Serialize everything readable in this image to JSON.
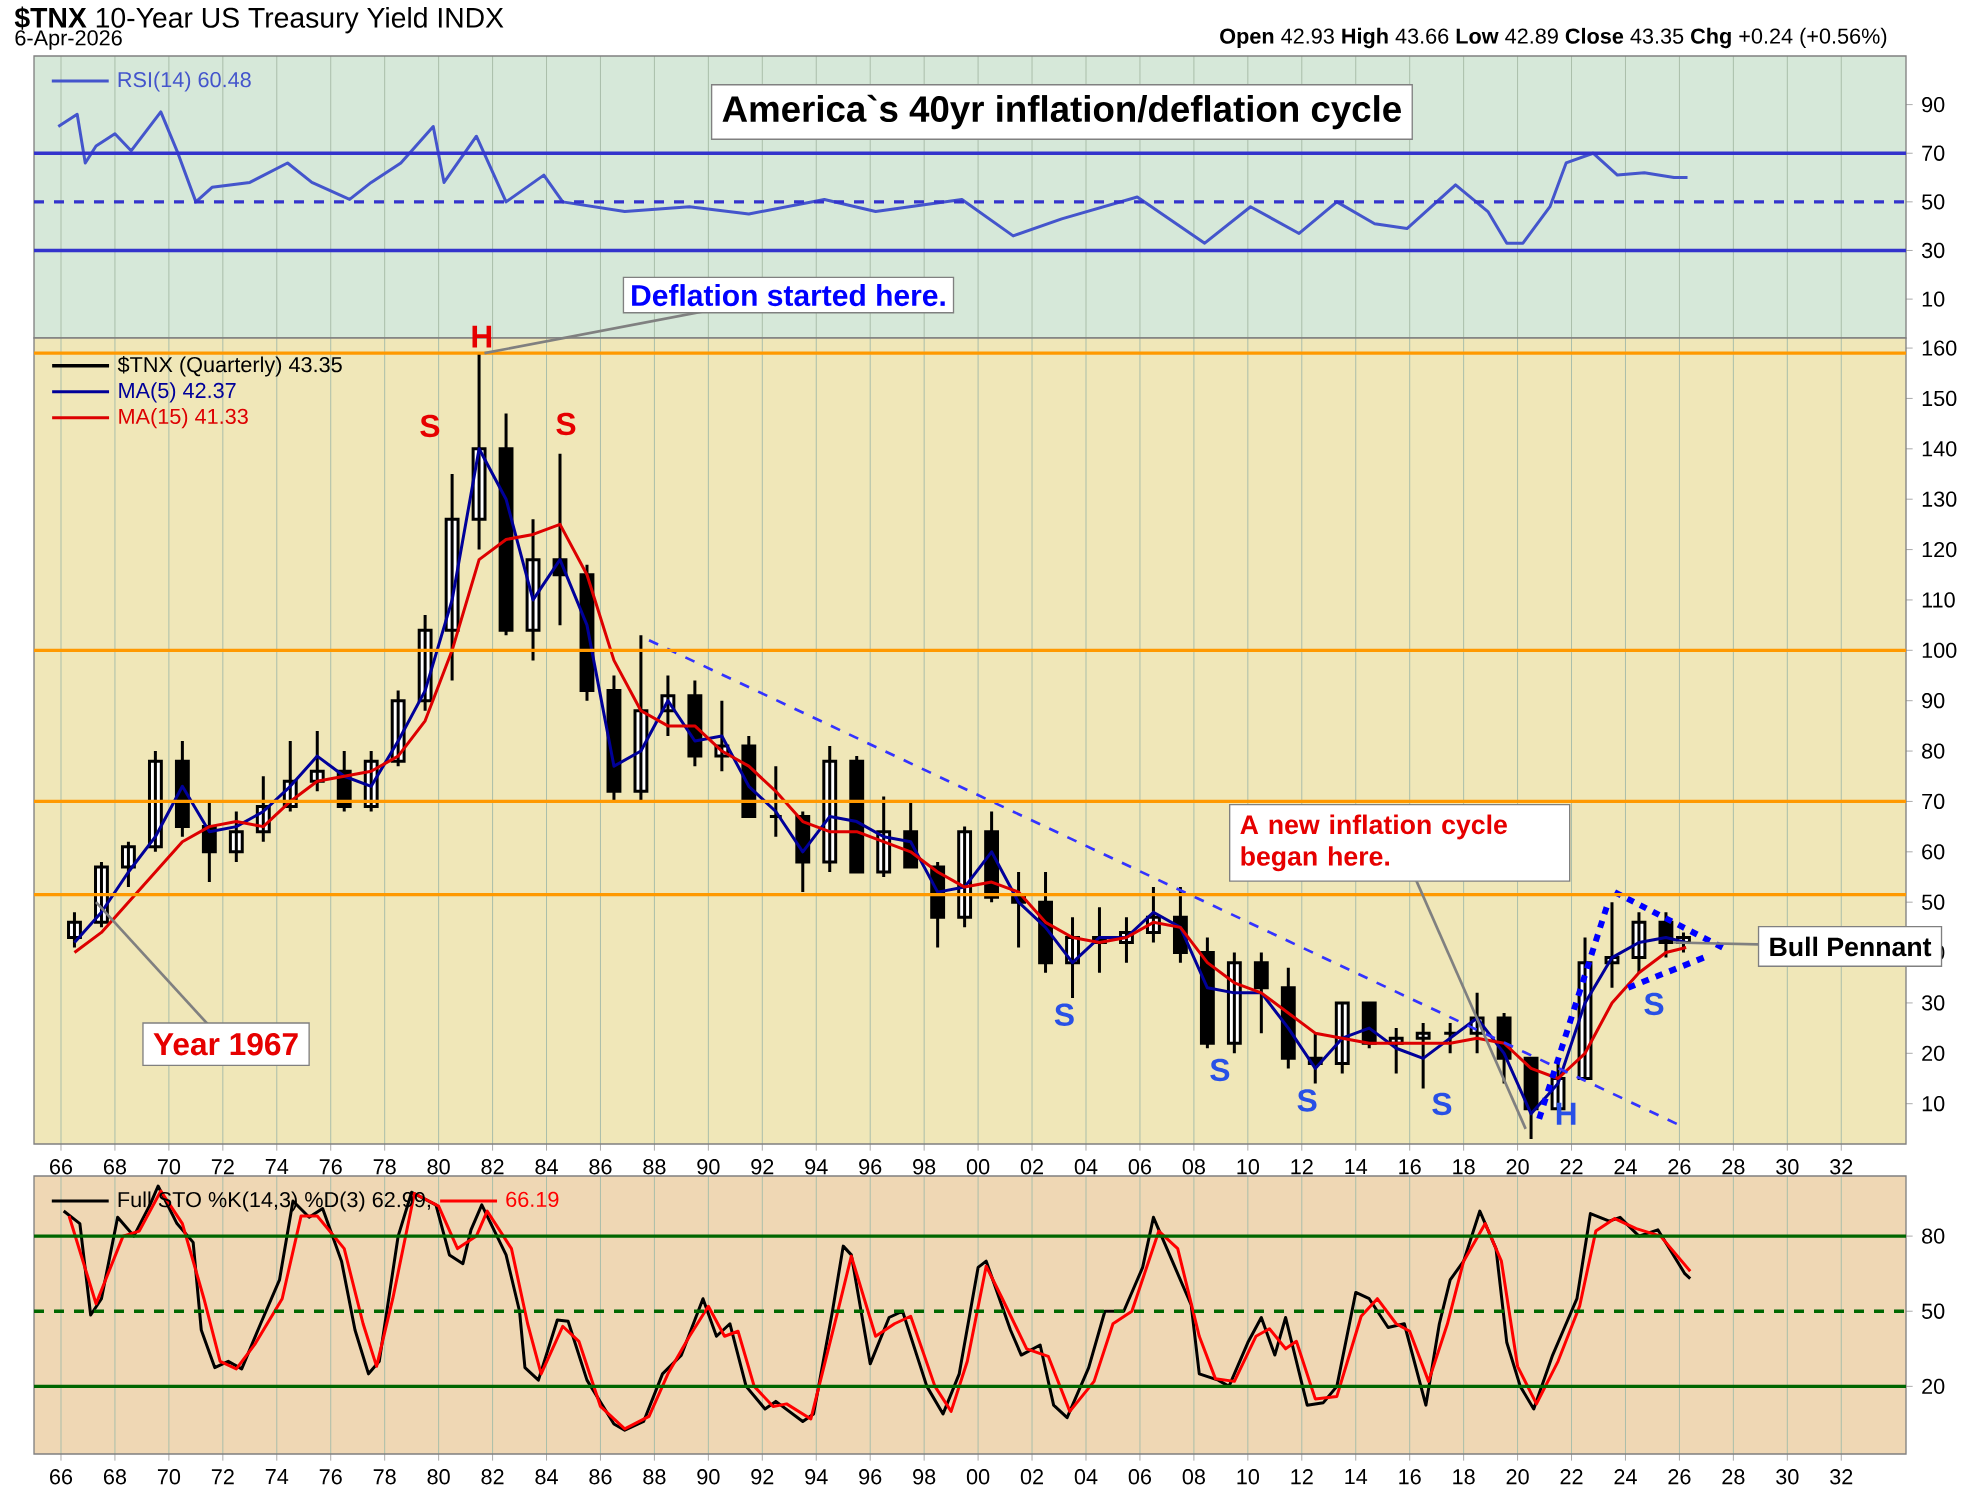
{
  "chart_data": [
    {
      "type": "line",
      "title": "**$TNX** 10-Year US Treasury Yield INDX",
      "subtitle": "6-Apr-2026",
      "annotations": [
        "America`s 40yr inflation/deflation cycle",
        "**Open** 42.93 **High** 43.66 **Low** 42.89 **Close** 43.35 **Chg** +0.24 (+0.56%)"
      ],
      "xlim": [
        1965,
        2034.4
      ],
      "ylim": [
        -6,
        110
      ],
      "yticks": [
        10,
        30,
        50,
        70,
        90
      ],
      "tick_labels": "y",
      "grid": "x",
      "legend": "top left",
      "xticks": [
        {
          "value": 1966,
          "label": null
        },
        {
          "value": 1968,
          "label": null
        },
        {
          "value": 1970,
          "label": null
        },
        {
          "value": 1972,
          "label": null
        },
        {
          "value": 1974,
          "label": null
        },
        {
          "value": 1976,
          "label": null
        },
        {
          "value": 1978,
          "label": null
        },
        {
          "value": 1980,
          "label": null
        },
        {
          "value": 1982,
          "label": null
        },
        {
          "value": 1984,
          "label": null
        },
        {
          "value": 1986,
          "label": null
        },
        {
          "value": 1988,
          "label": null
        },
        {
          "value": 1990,
          "label": null
        },
        {
          "value": 1992,
          "label": null
        },
        {
          "value": 1994,
          "label": null
        },
        {
          "value": 1996,
          "label": null
        },
        {
          "value": 1998,
          "label": null
        },
        {
          "value": 2000,
          "label": null
        },
        {
          "value": 2002,
          "label": null
        },
        {
          "value": 2004,
          "label": null
        },
        {
          "value": 2006,
          "label": null
        },
        {
          "value": 2008,
          "label": null
        },
        {
          "value": 2010,
          "label": null
        },
        {
          "value": 2012,
          "label": null
        },
        {
          "value": 2014,
          "label": null
        },
        {
          "value": 2016,
          "label": null
        },
        {
          "value": 2018,
          "label": null
        },
        {
          "value": 2020,
          "label": null
        },
        {
          "value": 2022,
          "label": null
        },
        {
          "value": 2024,
          "label": null
        },
        {
          "value": 2026,
          "label": null
        },
        {
          "value": 2028,
          "label": null
        },
        {
          "value": 2030,
          "label": null
        },
        {
          "value": 2032,
          "label": null
        }
      ],
      "ref_lines": [
        {
          "axis": "y",
          "value": 70,
          "color": "#3333cc",
          "line_style": "solid"
        },
        {
          "axis": "y",
          "value": 50,
          "color": "#3333cc",
          "line_style": "dashed"
        },
        {
          "axis": "y",
          "value": 30,
          "color": "#3333cc",
          "line_style": "solid"
        }
      ],
      "series": [
        {
          "name": "RSI(14) 60.48",
          "color": "#4455cc",
          "x": [
            1965.9,
            1966.6,
            1966.9,
            1967.3,
            1968,
            1968.6,
            1969.7,
            1970.3,
            1971,
            1971.6,
            1973,
            1974.4,
            1975.3,
            1976.7,
            1977.5,
            1978.6,
            1979.8,
            1980.2,
            1981.4,
            1982.5,
            1983.9,
            1984.6,
            1986.9,
            1989.3,
            1991.5,
            1994.3,
            1996.2,
            1999.4,
            2001.3,
            2003.1,
            2005.9,
            2008.4,
            2010.1,
            2011.9,
            2013.3,
            2014.7,
            2015.9,
            2017.7,
            2018.9,
            2019.6,
            2020.2,
            2021.2,
            2021.8,
            2022.8,
            2023.7,
            2024.7,
            2025.8,
            2026.3
          ],
          "values": [
            81,
            86,
            66,
            73,
            78,
            71,
            87,
            71,
            50,
            56,
            58,
            66,
            58,
            51,
            58,
            66,
            81,
            58,
            77,
            50,
            61,
            50,
            46,
            48,
            45,
            51,
            46,
            51,
            36,
            43,
            52,
            33,
            48,
            37,
            50,
            41,
            39,
            57,
            46,
            33,
            33,
            48,
            66,
            70,
            61,
            62,
            60,
            60
          ]
        }
      ]
    },
    {
      "type": "candlestick",
      "xlim": [
        1965,
        2034.4
      ],
      "ylim": [
        2,
        162
      ],
      "yticks": [
        10,
        20,
        30,
        40,
        50,
        60,
        70,
        80,
        90,
        100,
        110,
        120,
        130,
        140,
        150,
        160
      ],
      "grid": "x",
      "legend": "top left",
      "xticks": [
        {
          "value": 1966,
          "label": "66"
        },
        {
          "value": 1968,
          "label": "68"
        },
        {
          "value": 1970,
          "label": "70"
        },
        {
          "value": 1972,
          "label": "72"
        },
        {
          "value": 1974,
          "label": "74"
        },
        {
          "value": 1976,
          "label": "76"
        },
        {
          "value": 1978,
          "label": "78"
        },
        {
          "value": 1980,
          "label": "80"
        },
        {
          "value": 1982,
          "label": "82"
        },
        {
          "value": 1984,
          "label": "84"
        },
        {
          "value": 1986,
          "label": "86"
        },
        {
          "value": 1988,
          "label": "88"
        },
        {
          "value": 1990,
          "label": "90"
        },
        {
          "value": 1992,
          "label": "92"
        },
        {
          "value": 1994,
          "label": "94"
        },
        {
          "value": 1996,
          "label": "96"
        },
        {
          "value": 1998,
          "label": "98"
        },
        {
          "value": 2000,
          "label": "00"
        },
        {
          "value": 2002,
          "label": "02"
        },
        {
          "value": 2004,
          "label": "04"
        },
        {
          "value": 2006,
          "label": "06"
        },
        {
          "value": 2008,
          "label": "08"
        },
        {
          "value": 2010,
          "label": "10"
        },
        {
          "value": 2012,
          "label": "12"
        },
        {
          "value": 2014,
          "label": "14"
        },
        {
          "value": 2016,
          "label": "16"
        },
        {
          "value": 2018,
          "label": "18"
        },
        {
          "value": 2020,
          "label": "20"
        },
        {
          "value": 2022,
          "label": "22"
        },
        {
          "value": 2024,
          "label": "24"
        },
        {
          "value": 2026,
          "label": "26"
        },
        {
          "value": 2028,
          "label": "28"
        },
        {
          "value": 2030,
          "label": "30"
        },
        {
          "value": 2032,
          "label": "32"
        }
      ],
      "ref_lines": [
        {
          "axis": "y",
          "value": 159,
          "color": "#ff9900",
          "line_style": "solid"
        },
        {
          "axis": "y",
          "value": 100,
          "color": "#ff9900",
          "line_style": "solid"
        },
        {
          "axis": "y",
          "value": 70,
          "color": "#ff9900",
          "line_style": "solid"
        },
        {
          "axis": "y",
          "value": 51.5,
          "color": "#ff9900",
          "line_style": "solid"
        }
      ],
      "annotations": [
        {
          "text": "H",
          "x": 1981.6,
          "y": 159
        },
        {
          "text": "Deflation started here.",
          "x": 1981.7,
          "y": 159
        },
        {
          "text": "Year 1967",
          "x": 1967.3,
          "y": 50
        },
        {
          "text": "S",
          "x": 2003.2,
          "y": 31
        },
        {
          "text": "S",
          "x": 2012.2,
          "y": 14
        },
        {
          "text": "A new inflation cycle began here.",
          "x": 2020.3,
          "y": 5
        },
        {
          "text": "H",
          "x": 2021.8,
          "y": 8
        },
        {
          "text": "Bull Pennant",
          "x": 2025.8,
          "y": 42
        },
        "S",
        "S",
        "S",
        "S",
        "S"
      ],
      "series": [
        {
          "name": "$TNX (Quarterly) 43.35",
          "type": "candlestick",
          "color": "#000000",
          "x": [
            1966.5,
            1967.5,
            1968.5,
            1969.5,
            1970.5,
            1971.5,
            1972.5,
            1973.5,
            1974.5,
            1975.5,
            1976.5,
            1977.5,
            1978.5,
            1979.5,
            1980.5,
            1981.5,
            1982.5,
            1983.5,
            1984.5,
            1985.5,
            1986.5,
            1987.5,
            1988.5,
            1989.5,
            1990.5,
            1991.5,
            1992.5,
            1993.5,
            1994.5,
            1995.5,
            1996.5,
            1997.5,
            1998.5,
            1999.5,
            2000.5,
            2001.5,
            2002.5,
            2003.5,
            2004.5,
            2005.5,
            2006.5,
            2007.5,
            2008.5,
            2009.5,
            2010.5,
            2011.5,
            2012.5,
            2013.5,
            2014.5,
            2015.5,
            2016.5,
            2017.5,
            2018.5,
            2019.5,
            2020.5,
            2021.5,
            2022.5,
            2023.5,
            2024.5,
            2025.5,
            2026.15
          ],
          "ohlc": [
            [
              43,
              48,
              41,
              46
            ],
            [
              46,
              58,
              45,
              57
            ],
            [
              57,
              62,
              53,
              61
            ],
            [
              61,
              80,
              60,
              78
            ],
            [
              78,
              82,
              63,
              65
            ],
            [
              65,
              70,
              54,
              60
            ],
            [
              60,
              68,
              58,
              64
            ],
            [
              64,
              75,
              62,
              69
            ],
            [
              69,
              82,
              68,
              74
            ],
            [
              74,
              84,
              72,
              76
            ],
            [
              76,
              80,
              68,
              69
            ],
            [
              69,
              80,
              68,
              78
            ],
            [
              78,
              92,
              77,
              90
            ],
            [
              90,
              107,
              88,
              104
            ],
            [
              104,
              135,
              94,
              126
            ],
            [
              126,
              159,
              120,
              140
            ],
            [
              140,
              147,
              103,
              104
            ],
            [
              104,
              126,
              98,
              118
            ],
            [
              118,
              139,
              105,
              115
            ],
            [
              115,
              117,
              90,
              92
            ],
            [
              92,
              95,
              70,
              72
            ],
            [
              72,
              103,
              70,
              88
            ],
            [
              88,
              95,
              83,
              91
            ],
            [
              91,
              94,
              77,
              79
            ],
            [
              79,
              90,
              76,
              81
            ],
            [
              81,
              83,
              67,
              67
            ],
            [
              67,
              77,
              63,
              67
            ],
            [
              67,
              68,
              52,
              58
            ],
            [
              58,
              81,
              56,
              78
            ],
            [
              78,
              79,
              56,
              56
            ],
            [
              56,
              71,
              55,
              64
            ],
            [
              64,
              70,
              57,
              57
            ],
            [
              57,
              58,
              41,
              47
            ],
            [
              47,
              65,
              45,
              64
            ],
            [
              64,
              68,
              50,
              51
            ],
            [
              51,
              56,
              41,
              50
            ],
            [
              50,
              56,
              36,
              38
            ],
            [
              38,
              47,
              31,
              43
            ],
            [
              43,
              49,
              36,
              42
            ],
            [
              42,
              47,
              38,
              44
            ],
            [
              44,
              53,
              42,
              47
            ],
            [
              47,
              53,
              38,
              40
            ],
            [
              40,
              43,
              21,
              22
            ],
            [
              22,
              40,
              20,
              38
            ],
            [
              38,
              40,
              24,
              33
            ],
            [
              33,
              37,
              17,
              19
            ],
            [
              19,
              24,
              14,
              18
            ],
            [
              18,
              30,
              16,
              30
            ],
            [
              30,
              30,
              21,
              22
            ],
            [
              22,
              25,
              16,
              23
            ],
            [
              23,
              26,
              13,
              24
            ],
            [
              24,
              26,
              20,
              24
            ],
            [
              24,
              32,
              20,
              27
            ],
            [
              27,
              28,
              14,
              19
            ],
            [
              19,
              19,
              3,
              9
            ],
            [
              9,
              18,
              9,
              15
            ],
            [
              15,
              43,
              15,
              38
            ],
            [
              38,
              50,
              33,
              39
            ],
            [
              39,
              48,
              36,
              46
            ],
            [
              46,
              48,
              39,
              42
            ],
            [
              42,
              44,
              40,
              43
            ]
          ]
        },
        {
          "name": "MA(5) 42.37",
          "type": "line",
          "color": "#000099",
          "x": [
            1966.5,
            1967.5,
            1968.5,
            1969.5,
            1970.5,
            1971.5,
            1972.5,
            1973.5,
            1974.5,
            1975.5,
            1976.5,
            1977.5,
            1978.5,
            1979.5,
            1980.5,
            1981.5,
            1982.5,
            1983.5,
            1984.5,
            1985.5,
            1986.5,
            1987.5,
            1988.5,
            1989.5,
            1990.5,
            1991.5,
            1992.5,
            1993.5,
            1994.5,
            1995.5,
            1996.5,
            1997.5,
            1998.5,
            1999.5,
            2000.5,
            2001.5,
            2002.5,
            2003.5,
            2004.5,
            2005.5,
            2006.5,
            2007.5,
            2008.5,
            2009.5,
            2010.5,
            2011.5,
            2012.5,
            2013.5,
            2014.5,
            2015.5,
            2016.5,
            2017.5,
            2018.5,
            2019.5,
            2020.5,
            2021.5,
            2022.5,
            2023.5,
            2024.5,
            2025.5,
            2026.25
          ],
          "values": [
            42,
            48,
            56,
            63,
            73,
            64,
            65,
            68,
            73,
            79,
            75,
            73,
            82,
            92,
            110,
            140,
            130,
            110,
            118,
            105,
            77,
            80,
            90,
            82,
            83,
            73,
            68,
            60,
            67,
            66,
            63,
            62,
            52,
            53,
            60,
            50,
            45,
            38,
            43,
            43,
            48,
            45,
            33,
            32,
            32,
            25,
            17,
            23,
            25,
            21,
            19,
            23,
            27,
            20,
            8,
            14,
            30,
            39,
            42,
            43,
            42
          ]
        },
        {
          "name": "MA(15) 41.33",
          "type": "line",
          "color": "#dd0000",
          "x": [
            1966.5,
            1967.5,
            1968.5,
            1969.5,
            1970.5,
            1971.5,
            1972.5,
            1973.5,
            1974.5,
            1975.5,
            1976.5,
            1977.5,
            1978.5,
            1979.5,
            1980.5,
            1981.5,
            1982.5,
            1983.5,
            1984.5,
            1985.5,
            1986.5,
            1987.5,
            1988.5,
            1989.5,
            1990.5,
            1991.5,
            1992.5,
            1993.5,
            1994.5,
            1995.5,
            1996.5,
            1997.5,
            1998.5,
            1999.5,
            2000.5,
            2001.5,
            2002.5,
            2003.5,
            2004.5,
            2005.5,
            2006.5,
            2007.5,
            2008.5,
            2009.5,
            2010.5,
            2011.5,
            2012.5,
            2013.5,
            2014.5,
            2015.5,
            2016.5,
            2017.5,
            2018.5,
            2019.5,
            2020.5,
            2021.5,
            2022.5,
            2023.5,
            2024.5,
            2025.5,
            2026.25
          ],
          "values": [
            40,
            44,
            50,
            56,
            62,
            65,
            66,
            65,
            70,
            74,
            75,
            76,
            79,
            86,
            100,
            118,
            122,
            123,
            125,
            115,
            98,
            88,
            85,
            85,
            80,
            77,
            72,
            66,
            64,
            64,
            62,
            60,
            56,
            53,
            54,
            52,
            46,
            43,
            42,
            43,
            46,
            45,
            38,
            34,
            32,
            28,
            24,
            23,
            22,
            22,
            22,
            22,
            23,
            22,
            17,
            15,
            20,
            30,
            36,
            40,
            41
          ]
        },
        {
          "type": "line",
          "color": "#3333ff",
          "line_style": "dashed",
          "x": [
            1987.8,
            2025.9
          ],
          "values": [
            102,
            6
          ]
        },
        {
          "type": "line",
          "color": "#0000ff",
          "line_style": "dotted",
          "x": [
            2020.8,
            2023.3
          ],
          "values": [
            7,
            49
          ]
        },
        {
          "type": "line",
          "color": "#0000ff",
          "line_style": "dotted",
          "x": [
            2023.6,
            2027.6
          ],
          "values": [
            52,
            41
          ]
        },
        {
          "type": "line",
          "color": "#0000ff",
          "line_style": "dotted",
          "x": [
            2024.1,
            2026.9
          ],
          "values": [
            33,
            39
          ]
        }
      ]
    },
    {
      "type": "line",
      "xlim": [
        1965,
        2034.4
      ],
      "ylim": [
        -7,
        104
      ],
      "yticks": [
        20,
        50,
        80
      ],
      "grid": true,
      "legend": "top left",
      "xticks": [
        {
          "value": 1966,
          "label": "66"
        },
        {
          "value": 1968,
          "label": "68"
        },
        {
          "value": 1970,
          "label": "70"
        },
        {
          "value": 1972,
          "label": "72"
        },
        {
          "value": 1974,
          "label": "74"
        },
        {
          "value": 1976,
          "label": "76"
        },
        {
          "value": 1978,
          "label": "78"
        },
        {
          "value": 1980,
          "label": "80"
        },
        {
          "value": 1982,
          "label": "82"
        },
        {
          "value": 1984,
          "label": "84"
        },
        {
          "value": 1986,
          "label": "86"
        },
        {
          "value": 1988,
          "label": "88"
        },
        {
          "value": 1990,
          "label": "90"
        },
        {
          "value": 1992,
          "label": "92"
        },
        {
          "value": 1994,
          "label": "94"
        },
        {
          "value": 1996,
          "label": "96"
        },
        {
          "value": 1998,
          "label": "98"
        },
        {
          "value": 2000,
          "label": "00"
        },
        {
          "value": 2002,
          "label": "02"
        },
        {
          "value": 2004,
          "label": "04"
        },
        {
          "value": 2006,
          "label": "06"
        },
        {
          "value": 2008,
          "label": "08"
        },
        {
          "value": 2010,
          "label": "10"
        },
        {
          "value": 2012,
          "label": "12"
        },
        {
          "value": 2014,
          "label": "14"
        },
        {
          "value": 2016,
          "label": "16"
        },
        {
          "value": 2018,
          "label": "18"
        },
        {
          "value": 2020,
          "label": "20"
        },
        {
          "value": 2022,
          "label": "22"
        },
        {
          "value": 2024,
          "label": "24"
        },
        {
          "value": 2026,
          "label": "26"
        },
        {
          "value": 2028,
          "label": "28"
        },
        {
          "value": 2030,
          "label": "30"
        },
        {
          "value": 2032,
          "label": "32"
        }
      ],
      "ref_lines": [
        {
          "axis": "y",
          "value": 80,
          "color": "#006600",
          "line_style": "solid"
        },
        {
          "axis": "y",
          "value": 50,
          "color": "#006600",
          "line_style": "dashed"
        },
        {
          "axis": "y",
          "value": 20,
          "color": "#006600",
          "line_style": "solid"
        }
      ],
      "series": [
        {
          "name": "Full STO %K(14,3) %D(3) 62.99,",
          "color": "#000000",
          "x": [
            1966.1,
            1966.7,
            1967.1,
            1967.5,
            1968.1,
            1968.7,
            1969.3,
            1969.6,
            1970.3,
            1970.9,
            1971.2,
            1971.7,
            1972.2,
            1972.7,
            1973.4,
            1974.1,
            1974.6,
            1975.2,
            1975.7,
            1976.4,
            1976.9,
            1977.4,
            1977.8,
            1978.5,
            1979,
            1979.9,
            1980.4,
            1980.9,
            1981.2,
            1981.6,
            1982.5,
            1983,
            1983.2,
            1983.7,
            1984.4,
            1984.8,
            1985.5,
            1986.5,
            1986.9,
            1987.6,
            1988.3,
            1989,
            1989.8,
            1990.3,
            1990.8,
            1991.4,
            1992.1,
            1992.5,
            1993.5,
            1993.9,
            1994.6,
            1995,
            1995.3,
            1996,
            1996.7,
            1997.2,
            1998.1,
            1998.7,
            1999.3,
            2000,
            2000.3,
            2001.2,
            2001.6,
            2002.3,
            2002.8,
            2003.3,
            2004.1,
            2004.7,
            2005.4,
            2006.1,
            2006.5,
            2007.2,
            2007.9,
            2008.2,
            2008.9,
            2009.3,
            2010,
            2010.5,
            2011,
            2011.4,
            2012.2,
            2012.8,
            2013.3,
            2014,
            2014.5,
            2015.2,
            2015.8,
            2016.6,
            2017.1,
            2017.5,
            2018,
            2018.6,
            2019.2,
            2019.6,
            2020.1,
            2020.6,
            2021.3,
            2021.7,
            2022.2,
            2022.7,
            2023.4,
            2023.8,
            2024.5,
            2025.2,
            2026.2,
            2026.4
          ],
          "values": [
            90,
            85,
            48.5,
            55,
            87.5,
            80,
            92.5,
            100,
            85,
            77.5,
            42.5,
            27.5,
            30,
            27,
            45,
            62.5,
            94,
            87.5,
            91,
            70,
            42.5,
            25,
            30,
            80,
            97.5,
            92.5,
            72.5,
            69,
            82.5,
            92.5,
            72.5,
            50,
            27.5,
            22.5,
            46.5,
            46,
            22.5,
            5,
            2.5,
            6,
            25,
            32.5,
            55,
            40,
            45,
            20,
            11,
            14,
            6,
            9,
            50,
            76,
            72.5,
            29,
            47.5,
            50,
            20,
            9,
            25,
            67.5,
            70,
            42.5,
            32.5,
            36.5,
            12.5,
            7.5,
            27.5,
            50,
            50,
            67.5,
            87.5,
            70,
            52.5,
            25,
            22.5,
            20,
            37.5,
            47.5,
            32.5,
            47.5,
            12.5,
            13.5,
            20,
            57.5,
            55,
            43.5,
            45,
            12.5,
            45,
            62.5,
            70,
            90,
            75,
            37.5,
            20,
            11,
            32.5,
            42.5,
            55,
            89,
            86,
            87.5,
            80,
            82.5,
            65,
            63
          ]
        },
        {
          "name": "66.19",
          "color": "#ff0000",
          "x": [
            1966.3,
            1967.3,
            1968.3,
            1968.9,
            1969.7,
            1970.5,
            1971.3,
            1971.9,
            1972.5,
            1973.2,
            1974.2,
            1974.9,
            1975.5,
            1976.5,
            1977.2,
            1977.7,
            1978.3,
            1979.1,
            1980,
            1980.7,
            1981.4,
            1981.8,
            1982.7,
            1983.3,
            1983.8,
            1984.6,
            1985.2,
            1986,
            1986.9,
            1987.8,
            1988.5,
            1989.3,
            1990,
            1990.6,
            1991.1,
            1991.7,
            1992.4,
            1992.9,
            1993.8,
            1994.8,
            1995.3,
            1996.2,
            1996.9,
            1997.5,
            1998.4,
            1999,
            1999.6,
            2000.3,
            2000.9,
            2001.8,
            2002.6,
            2003.4,
            2004.3,
            2005,
            2005.7,
            2006.7,
            2007.4,
            2008.2,
            2008.8,
            2009.5,
            2010.3,
            2010.8,
            2011.4,
            2011.8,
            2012.5,
            2013.3,
            2014.2,
            2014.8,
            2015.5,
            2016,
            2016.7,
            2017.4,
            2018,
            2018.8,
            2019.4,
            2020,
            2020.7,
            2021.5,
            2022.3,
            2022.9,
            2023.6,
            2024.4,
            2025.3,
            2026.4
          ],
          "values": [
            88,
            53,
            80,
            82,
            98,
            85,
            55,
            30,
            27,
            37,
            55,
            88,
            88,
            75,
            45,
            28,
            55,
            97,
            92,
            75,
            80,
            90,
            75,
            45,
            25,
            44,
            38,
            12,
            3,
            8,
            25,
            40,
            52,
            40,
            42,
            20,
            12,
            13,
            7,
            50,
            72,
            40,
            45,
            48,
            20,
            10,
            30,
            68,
            55,
            35,
            32,
            10,
            22,
            45,
            50,
            82,
            75,
            40,
            23,
            22,
            40,
            43,
            35,
            38,
            15,
            16,
            48,
            55,
            45,
            42,
            22,
            45,
            70,
            85,
            70,
            28,
            13,
            30,
            52,
            82,
            87,
            83,
            80,
            66
          ]
        }
      ]
    }
  ]
}
